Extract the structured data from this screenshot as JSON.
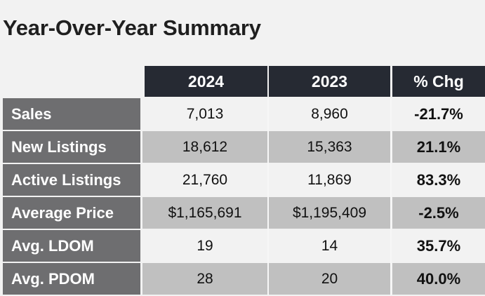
{
  "title": "Year-Over-Year Summary",
  "table": {
    "columns": [
      "2024",
      "2023",
      "% Chg"
    ],
    "rows": [
      {
        "label": "Sales",
        "y2024": "7,013",
        "y2023": "8,960",
        "chg": "-21.7%"
      },
      {
        "label": "New Listings",
        "y2024": "18,612",
        "y2023": "15,363",
        "chg": "21.1%"
      },
      {
        "label": "Active Listings",
        "y2024": "21,760",
        "y2023": "11,869",
        "chg": "83.3%"
      },
      {
        "label": "Average Price",
        "y2024": "$1,165,691",
        "y2023": "$1,195,409",
        "chg": "-2.5%"
      },
      {
        "label": "Avg. LDOM",
        "y2024": "19",
        "y2023": "14",
        "chg": "35.7%"
      },
      {
        "label": "Avg. PDOM",
        "y2024": "28",
        "y2023": "20",
        "chg": "40.0%"
      }
    ]
  },
  "colors": {
    "header_bg": "#262a33",
    "label_bg": "#6e6e70",
    "row_light": "#f2f2f2",
    "row_dark": "#c0c0c0"
  }
}
